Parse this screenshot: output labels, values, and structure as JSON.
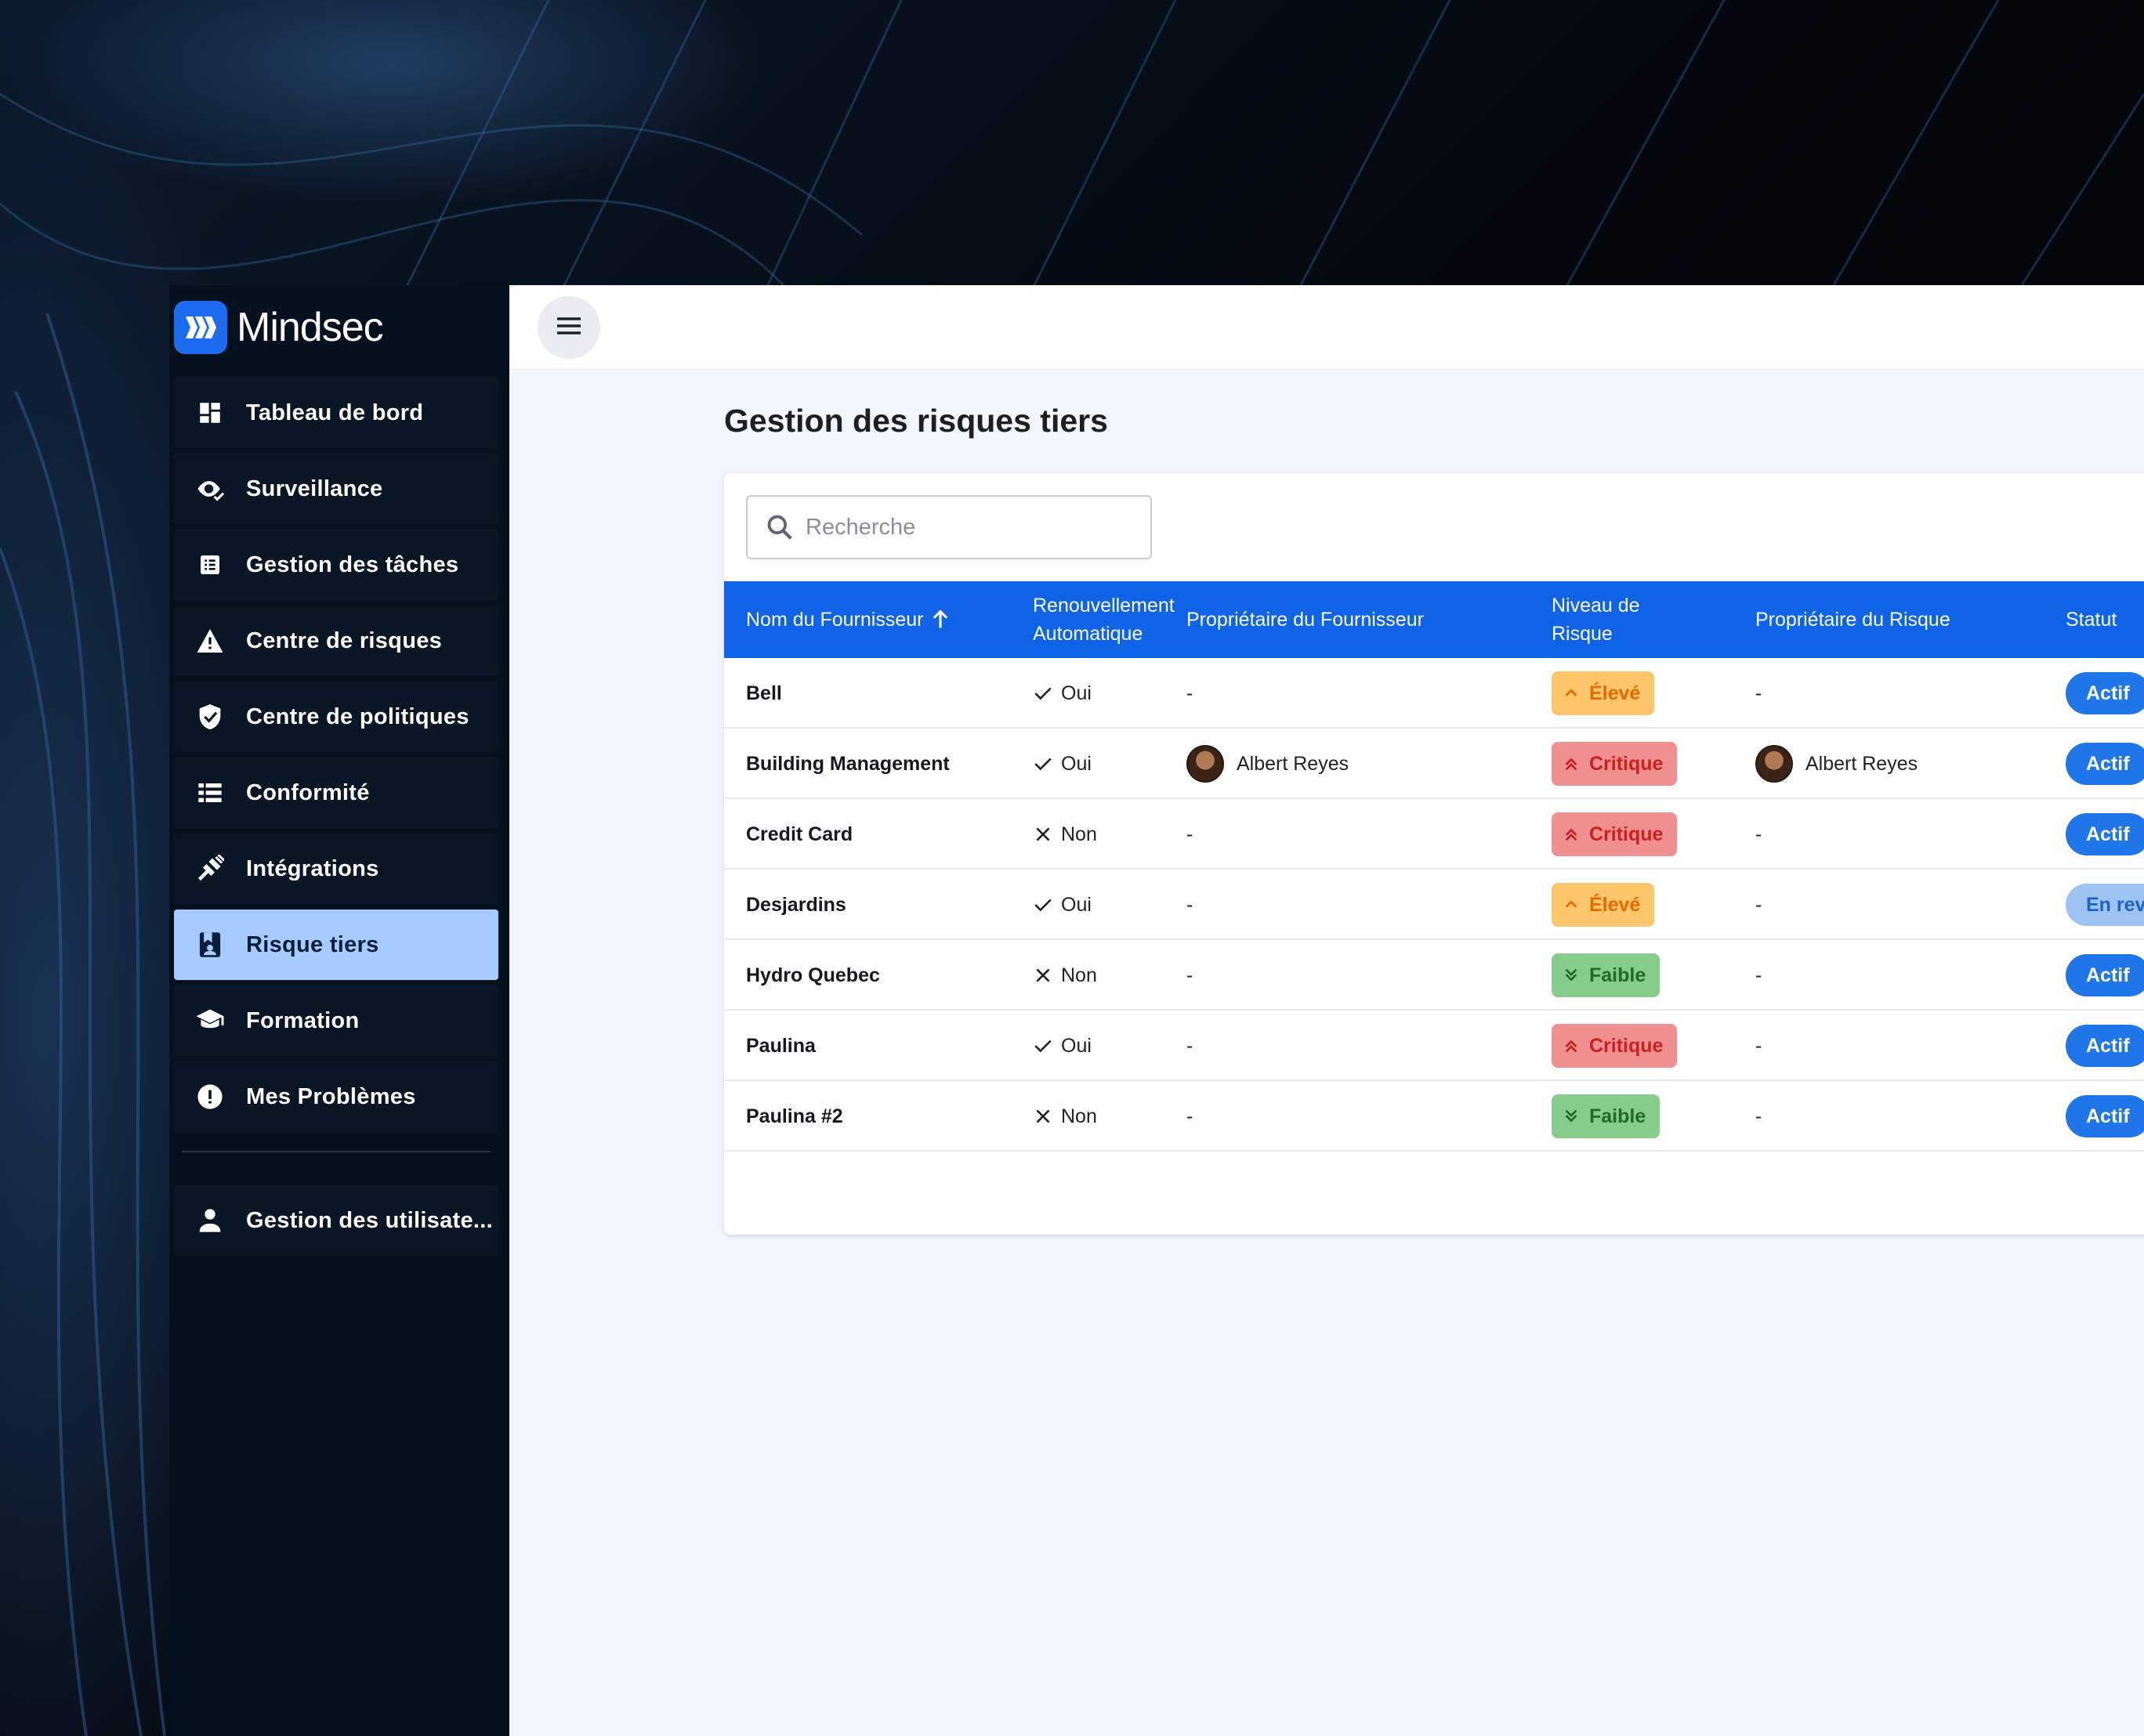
{
  "app": {
    "name": "Mindsec",
    "page_title": "Gestion des risques tiers"
  },
  "sidebar": {
    "items": [
      {
        "label": "Tableau de bord",
        "icon": "dashboard-icon"
      },
      {
        "label": "Surveillance",
        "icon": "eye-icon"
      },
      {
        "label": "Gestion des tâches",
        "icon": "task-list-icon"
      },
      {
        "label": "Centre de risques",
        "icon": "warning-icon"
      },
      {
        "label": "Centre de politiques",
        "icon": "shield-check-icon"
      },
      {
        "label": "Conformité",
        "icon": "list-icon"
      },
      {
        "label": "Intégrations",
        "icon": "plug-icon"
      },
      {
        "label": "Risque tiers",
        "icon": "vendor-risk-icon",
        "active": true
      },
      {
        "label": "Formation",
        "icon": "graduation-cap-icon"
      },
      {
        "label": "Mes Problèmes",
        "icon": "alert-circle-icon"
      }
    ],
    "footer_items": [
      {
        "label": "Gestion des utilisate...",
        "icon": "user-icon"
      }
    ]
  },
  "search": {
    "placeholder": "Recherche",
    "value": ""
  },
  "table": {
    "columns": [
      "Nom du Fournisseur",
      "Renouvellement Automatique",
      "Propriétaire du Fournisseur",
      "Niveau de Risque",
      "Propriétaire du Risque",
      "Statut"
    ],
    "column_lines": {
      "renewal": [
        "Renouvellement",
        "Automatique"
      ],
      "risk_level": [
        "Niveau de",
        "Risque"
      ]
    },
    "sort": {
      "column": "Nom du Fournisseur",
      "direction": "asc"
    },
    "rows": [
      {
        "vendor": "Bell",
        "renewal": "Oui",
        "renewal_icon": "check-icon",
        "vendor_owner": "-",
        "risk_level": "Élevé",
        "risk_kind": "eleve",
        "risk_owner": "-",
        "status": "Actif"
      },
      {
        "vendor": "Building Management",
        "renewal": "Oui",
        "renewal_icon": "check-icon",
        "vendor_owner": "Albert Reyes",
        "risk_level": "Critique",
        "risk_kind": "critique",
        "risk_owner": "Albert Reyes",
        "status": "Actif"
      },
      {
        "vendor": "Credit Card",
        "renewal": "Non",
        "renewal_icon": "close-icon",
        "vendor_owner": "-",
        "risk_level": "Critique",
        "risk_kind": "critique",
        "risk_owner": "-",
        "status": "Actif"
      },
      {
        "vendor": "Desjardins",
        "renewal": "Oui",
        "renewal_icon": "check-icon",
        "vendor_owner": "-",
        "risk_level": "Élevé",
        "risk_kind": "eleve",
        "risk_owner": "-",
        "status": "En rev"
      },
      {
        "vendor": "Hydro Quebec",
        "renewal": "Non",
        "renewal_icon": "close-icon",
        "vendor_owner": "-",
        "risk_level": "Faible",
        "risk_kind": "faible",
        "risk_owner": "-",
        "status": "Actif"
      },
      {
        "vendor": "Paulina",
        "renewal": "Oui",
        "renewal_icon": "check-icon",
        "vendor_owner": "-",
        "risk_level": "Critique",
        "risk_kind": "critique",
        "risk_owner": "-",
        "status": "Actif"
      },
      {
        "vendor": "Paulina #2",
        "renewal": "Non",
        "renewal_icon": "close-icon",
        "vendor_owner": "-",
        "risk_level": "Faible",
        "risk_kind": "faible",
        "risk_owner": "-",
        "status": "Actif"
      }
    ]
  },
  "colors": {
    "primary": "#0e63e6",
    "sidebar_bg": "#06111f",
    "active_item": "#a6cbff",
    "content_bg": "#f2f6fd",
    "risk_high": "#ffc56b",
    "risk_critical": "#ef8f8f",
    "risk_low": "#86cc8a",
    "status_active": "#1f76e8",
    "status_review": "#9cc3f2"
  }
}
